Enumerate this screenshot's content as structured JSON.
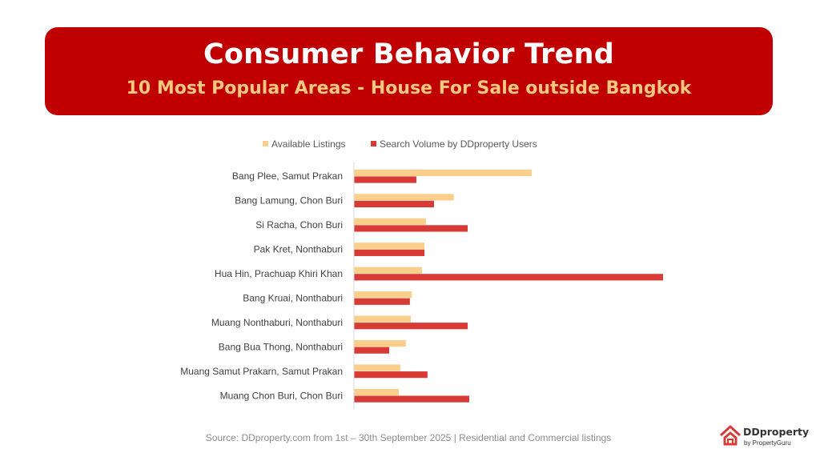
{
  "header": {
    "title": "Consumer Behavior Trend",
    "subtitle": "10 Most Popular Areas - House For Sale outside Bangkok"
  },
  "colors": {
    "banner": "#c00000",
    "subtitle": "#f7c97e",
    "listings": "#f9cf8b",
    "search": "#d83a36"
  },
  "chart_data": {
    "type": "bar",
    "orientation": "horizontal",
    "title": "",
    "xlabel": "",
    "ylabel": "",
    "axis_values_shown": false,
    "xlim": [
      0,
      100
    ],
    "legend_position": "top",
    "categories": [
      "Bang Plee, Samut Prakan",
      "Bang Lamung, Chon Buri",
      "Si Racha, Chon Buri",
      "Pak Kret, Nonthaburi",
      "Hua Hin, Prachuap Khiri Khan",
      "Bang Kruai, Nonthaburi",
      "Muang Nonthaburi, Nonthaburi",
      "Bang Bua Thong, Nonthaburi",
      "Muang Samut Prakarn, Samut Prakan",
      "Muang Chon Buri, Chon Buri"
    ],
    "series": [
      {
        "name": "Available Listings",
        "color": "#f9cf8b",
        "values": [
          57.5,
          32.3,
          23.3,
          22.8,
          22.0,
          18.7,
          18.4,
          16.8,
          15.0,
          14.5
        ]
      },
      {
        "name": "Search Volume by DDproperty Users",
        "color": "#d83a36",
        "values": [
          20.2,
          25.9,
          36.8,
          22.8,
          100.0,
          18.1,
          36.8,
          11.4,
          23.8,
          37.3
        ]
      }
    ]
  },
  "footer": {
    "source": "Source: DDproperty.com from 1st – 30th September 2025 | Residential and Commercial listings"
  },
  "logo": {
    "brand": "DDproperty",
    "sub": "by PropertyGuru",
    "icon": "ddproperty-house-icon"
  }
}
